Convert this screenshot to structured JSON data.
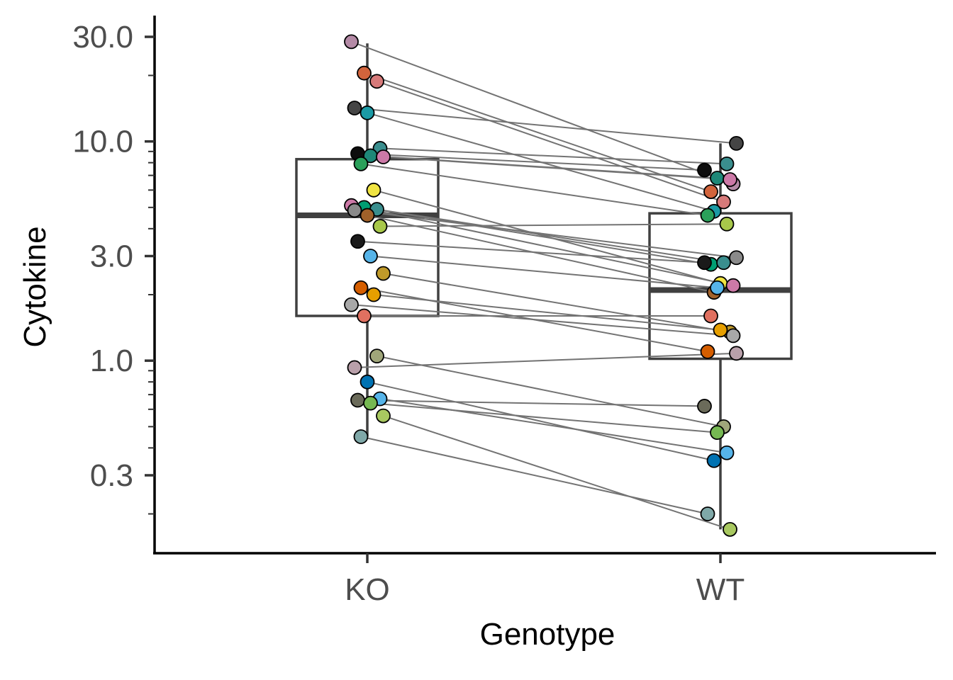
{
  "chart_data": {
    "type": "boxplot-paired",
    "xlabel": "Genotype",
    "ylabel": "Cytokine",
    "y_scale": "log10",
    "ylim": [
      0.15,
      34
    ],
    "y_ticks": [
      {
        "value": 0.3,
        "label": "0.3"
      },
      {
        "value": 1.0,
        "label": "1.0"
      },
      {
        "value": 3.0,
        "label": "3.0"
      },
      {
        "value": 10.0,
        "label": "10.0"
      },
      {
        "value": 30.0,
        "label": "30.0"
      }
    ],
    "grid": false,
    "legend": "none",
    "categories": [
      "KO",
      "WT"
    ],
    "boxes": [
      {
        "category": "KO",
        "whisker_low": 0.45,
        "q1": 1.6,
        "median": 4.6,
        "q3": 8.3,
        "whisker_high": 28.0
      },
      {
        "category": "WT",
        "whisker_low": 0.17,
        "q1": 1.02,
        "median": 2.1,
        "q3": 4.7,
        "whisker_high": 9.8
      }
    ],
    "pairs": [
      {
        "ko": 28.5,
        "wt": 6.4,
        "color": "#b48aa6"
      },
      {
        "ko": 20.5,
        "wt": 5.9,
        "color": "#d2643c"
      },
      {
        "ko": 18.8,
        "wt": 5.3,
        "color": "#d77a7a"
      },
      {
        "ko": 14.2,
        "wt": 9.8,
        "color": "#454545"
      },
      {
        "ko": 13.5,
        "wt": 4.8,
        "color": "#1b9aa5"
      },
      {
        "ko": 9.3,
        "wt": 7.9,
        "color": "#3a8e8e"
      },
      {
        "ko": 8.8,
        "wt": 7.4,
        "color": "#0d0d0d"
      },
      {
        "ko": 8.6,
        "wt": 6.8,
        "color": "#1e8878"
      },
      {
        "ko": 8.5,
        "wt": 6.7,
        "color": "#cc79a7"
      },
      {
        "ko": 7.9,
        "wt": 4.6,
        "color": "#2aa05a"
      },
      {
        "ko": 6.0,
        "wt": 2.25,
        "color": "#f0e442"
      },
      {
        "ko": 5.1,
        "wt": 2.2,
        "color": "#cc79a7"
      },
      {
        "ko": 5.0,
        "wt": 2.75,
        "color": "#009e73"
      },
      {
        "ko": 4.9,
        "wt": 2.8,
        "color": "#3a8e8e"
      },
      {
        "ko": 4.85,
        "wt": 2.95,
        "color": "#8a8a8a"
      },
      {
        "ko": 4.6,
        "wt": 2.05,
        "color": "#a0612a"
      },
      {
        "ko": 4.1,
        "wt": 4.2,
        "color": "#a8c84a"
      },
      {
        "ko": 3.5,
        "wt": 2.8,
        "color": "#1a1a1a"
      },
      {
        "ko": 3.0,
        "wt": 2.15,
        "color": "#56b4e9"
      },
      {
        "ko": 2.5,
        "wt": 1.35,
        "color": "#c09a2a"
      },
      {
        "ko": 2.15,
        "wt": 1.1,
        "color": "#d55e00"
      },
      {
        "ko": 2.0,
        "wt": 1.38,
        "color": "#e69f00"
      },
      {
        "ko": 1.8,
        "wt": 1.3,
        "color": "#a8a8a8"
      },
      {
        "ko": 1.6,
        "wt": 1.6,
        "color": "#e07060"
      },
      {
        "ko": 1.05,
        "wt": 0.5,
        "color": "#a0a67a"
      },
      {
        "ko": 0.93,
        "wt": 1.08,
        "color": "#b9a0aa"
      },
      {
        "ko": 0.8,
        "wt": 0.35,
        "color": "#0072b2"
      },
      {
        "ko": 0.67,
        "wt": 0.38,
        "color": "#56b4e9"
      },
      {
        "ko": 0.66,
        "wt": 0.62,
        "color": "#6b6b5a"
      },
      {
        "ko": 0.64,
        "wt": 0.47,
        "color": "#76b852"
      },
      {
        "ko": 0.56,
        "wt": 0.17,
        "color": "#a8c860"
      },
      {
        "ko": 0.45,
        "wt": 0.2,
        "color": "#7fa8a8"
      }
    ]
  }
}
